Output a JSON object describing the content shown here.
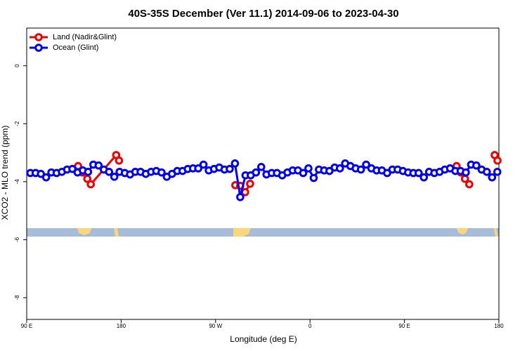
{
  "chart_data": {
    "type": "line",
    "title": "40S-35S December (Ver 11.1)   2014-09-06 to 2023-04-30",
    "x_label": "Longitude (deg E)",
    "y_label": "XCO2 - MLO trend (ppm)",
    "xlim": [
      90,
      540
    ],
    "ylim": [
      -8.75,
      1.3
    ],
    "xticks": [
      {
        "value": 90,
        "label": "90 E"
      },
      180,
      {
        "value": 270,
        "label": "90 W"
      },
      {
        "value": 360,
        "label": "0"
      },
      {
        "value": 450,
        "label": "90 E"
      },
      {
        "value": 540,
        "label": "180"
      }
    ],
    "yticks": [
      0,
      -2,
      -4,
      -6,
      -8
    ],
    "legend": "top-left",
    "series": [
      {
        "name": "Land (Nadir&Glint)",
        "color": "#ee0000",
        "x": [
          139.0,
          143.1,
          147.8,
          151.1,
          175.3,
          178.0,
          null,
          288.8,
          293.5,
          298.2,
          302.9,
          null,
          499.7,
          503.7,
          507.7,
          511.8,
          null,
          536.0,
          538.7
        ],
        "values": [
          -3.46,
          -3.68,
          -3.9,
          -4.09,
          -3.08,
          -3.27,
          null,
          -4.12,
          -4.14,
          -4.36,
          -4.07,
          null,
          -3.46,
          -3.68,
          -3.9,
          -4.09,
          null,
          -3.08,
          -3.27
        ]
      },
      {
        "name": "Ocean (Glint)",
        "color": "#0000ee",
        "x": [
          93.5,
          98.5,
          103.5,
          108.5,
          113.5,
          118.5,
          123.5,
          128.5,
          133.5,
          138.5,
          143.5,
          148.5,
          153.5,
          158.5,
          163.5,
          168.5,
          173.5,
          178.5,
          183.5,
          188.5,
          193.5,
          198.5,
          203.5,
          208.5,
          213.5,
          218.5,
          223.5,
          228.5,
          233.5,
          238.5,
          243.5,
          248.5,
          253.5,
          258.5,
          263.5,
          268.5,
          273.5,
          278.5,
          283.5,
          288.5,
          293.5,
          298.5,
          303.5,
          308.5,
          313.5,
          318.5,
          323.5,
          328.5,
          333.5,
          338.5,
          343.5,
          348.5,
          353.5,
          358.5,
          363.5,
          368.5,
          373.5,
          378.5,
          383.5,
          388.5,
          393.5,
          398.5,
          403.5,
          408.5,
          413.5,
          418.5,
          423.5,
          428.5,
          433.5,
          438.5,
          443.5,
          448.5,
          453.5,
          458.5,
          463.5,
          468.5,
          473.5,
          478.5,
          483.5,
          488.5,
          493.5,
          498.5,
          503.5,
          508.5,
          513.5,
          518.5,
          523.5,
          528.5,
          533.5,
          538.5
        ],
        "values": [
          -3.7,
          -3.7,
          -3.73,
          -3.85,
          -3.68,
          -3.7,
          -3.66,
          -3.58,
          -3.56,
          -3.68,
          -3.61,
          -3.66,
          -3.41,
          -3.44,
          -3.58,
          -3.66,
          -3.83,
          -3.66,
          -3.7,
          -3.75,
          -3.66,
          -3.66,
          -3.73,
          -3.66,
          -3.63,
          -3.68,
          -3.83,
          -3.73,
          -3.63,
          -3.63,
          -3.56,
          -3.54,
          -3.54,
          -3.41,
          -3.61,
          -3.56,
          -3.51,
          -3.58,
          -3.56,
          -3.37,
          -4.53,
          -3.78,
          -3.78,
          -3.68,
          -3.49,
          -3.75,
          -3.7,
          -3.7,
          -3.78,
          -3.68,
          -3.61,
          -3.61,
          -3.7,
          -3.54,
          -3.87,
          -3.58,
          -3.61,
          -3.63,
          -3.51,
          -3.54,
          -3.37,
          -3.46,
          -3.54,
          -3.58,
          -3.41,
          -3.54,
          -3.61,
          -3.61,
          -3.7,
          -3.58,
          -3.58,
          -3.63,
          -3.68,
          -3.7,
          -3.7,
          -3.85,
          -3.66,
          -3.7,
          -3.66,
          -3.58,
          -3.54,
          -3.63,
          -3.63,
          -3.68,
          -3.41,
          -3.44,
          -3.58,
          -3.66,
          -3.85,
          -3.66
        ]
      }
    ]
  }
}
